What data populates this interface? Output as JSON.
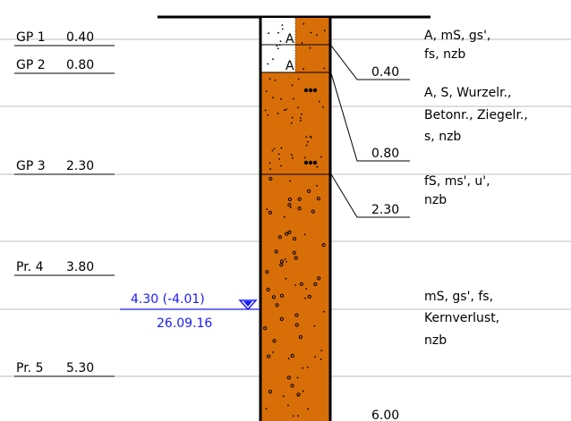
{
  "samples": [
    {
      "label": "GP 1",
      "depth": "0.40"
    },
    {
      "label": "GP 2",
      "depth": "0.80"
    },
    {
      "label": "GP 3",
      "depth": "2.30"
    },
    {
      "label": "Pr. 4",
      "depth": "3.80"
    },
    {
      "label": "Pr. 5",
      "depth": "5.30"
    }
  ],
  "layer_bottoms": [
    "0.40",
    "0.80",
    "2.30",
    "6.00"
  ],
  "layer_symbols": [
    "A",
    "A"
  ],
  "descriptions": [
    [
      "A, mS, gs',",
      "fs, nzb"
    ],
    [
      "A, S, Wurzelr.,",
      "Betonr., Ziegelr.,",
      "s, nzb"
    ],
    [
      "fS, ms', u',",
      "nzb"
    ],
    [
      "mS, gs', fs,",
      "Kernverlust,",
      "nzb"
    ]
  ],
  "groundwater": {
    "level": "4.30 (-4.01)",
    "date": "26.09.16"
  },
  "colors": {
    "soil": "#d86e08",
    "fill_layer": "#ffffff",
    "water": "#1a1aff",
    "line": "#000000",
    "guide": "#bdbdbd"
  }
}
